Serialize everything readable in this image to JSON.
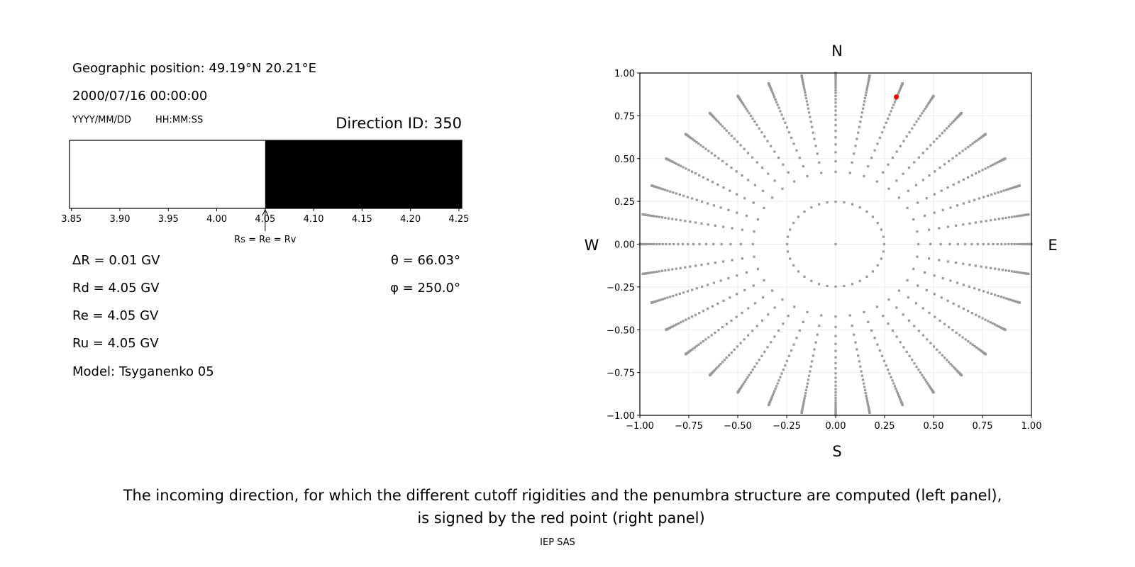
{
  "left_panel": {
    "geo_position": "Geographic position: 49.19°N 20.21°E",
    "datetime": "2000/07/16 00:00:00",
    "date_format": "YYYY/MM/DD",
    "time_format": "HH:MM:SS",
    "direction_id": "Direction ID: 350",
    "delta_r": "ΔR = 0.01 GV",
    "rd": "Rd = 4.05 GV",
    "re": "Re = 4.05 GV",
    "ru": "Ru = 4.05 GV",
    "model": "Model: Tsyganenko 05",
    "theta": "θ = 66.03°",
    "phi": "φ = 250.0°"
  },
  "caption": {
    "line1": "The incoming direction, for which the different cutoff rigidities and the penumbra structure are computed (left panel),",
    "line2": "is signed by the red point (right panel)",
    "credit": "IEP SAS"
  },
  "chart_data": [
    {
      "type": "bar",
      "xlim": [
        3.848,
        4.253
      ],
      "ticks": [
        "3.85",
        "3.90",
        "3.95",
        "4.00",
        "4.05",
        "4.10",
        "4.15",
        "4.20",
        "4.25"
      ],
      "tick_values": [
        3.85,
        3.9,
        3.95,
        4.0,
        4.05,
        4.1,
        4.15,
        4.2,
        4.25
      ],
      "segments": [
        {
          "from": 3.848,
          "to": 4.05,
          "state": "allowed",
          "color": "#ffffff"
        },
        {
          "from": 4.05,
          "to": 4.253,
          "state": "forbidden",
          "color": "#000000"
        }
      ],
      "annotation": {
        "text": "Rs = Re = Rv",
        "x": 4.05
      }
    },
    {
      "type": "scatter",
      "xlim": [
        -1.0,
        1.0
      ],
      "ylim": [
        -1.0,
        1.0
      ],
      "grid": true,
      "xticks": [
        "−1.00",
        "−0.75",
        "−0.50",
        "−0.25",
        "0.00",
        "0.25",
        "0.50",
        "0.75",
        "1.00"
      ],
      "yticks": [
        "−1.00",
        "−0.75",
        "−0.50",
        "−0.25",
        "0.00",
        "0.25",
        "0.50",
        "0.75",
        "1.00"
      ],
      "tick_values": [
        -1,
        -0.75,
        -0.5,
        -0.25,
        0,
        0.25,
        0.5,
        0.75,
        1
      ],
      "compass": {
        "north": "N",
        "south": "S",
        "west": "W",
        "east": "E"
      },
      "grid_points": {
        "azimuth_step_deg": 10,
        "cos_zenith_step": 0.03125,
        "color": "#999999"
      },
      "selected_point": {
        "x": 0.31,
        "y": 0.86,
        "color": "#ff0000"
      }
    }
  ]
}
